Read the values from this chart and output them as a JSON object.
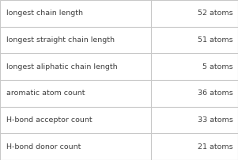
{
  "rows": [
    {
      "label": "longest chain length",
      "value": "52 atoms"
    },
    {
      "label": "longest straight chain length",
      "value": "51 atoms"
    },
    {
      "label": "longest aliphatic chain length",
      "value": "5 atoms"
    },
    {
      "label": "aromatic atom count",
      "value": "36 atoms"
    },
    {
      "label": "H-bond acceptor count",
      "value": "33 atoms"
    },
    {
      "label": "H-bond donor count",
      "value": "21 atoms"
    }
  ],
  "bg_color": "#ffffff",
  "border_color": "#c8c8c8",
  "text_color": "#404040",
  "font_size": 6.8,
  "col_split": 0.635,
  "fig_width": 3.01,
  "fig_height": 2.02,
  "dpi": 100
}
